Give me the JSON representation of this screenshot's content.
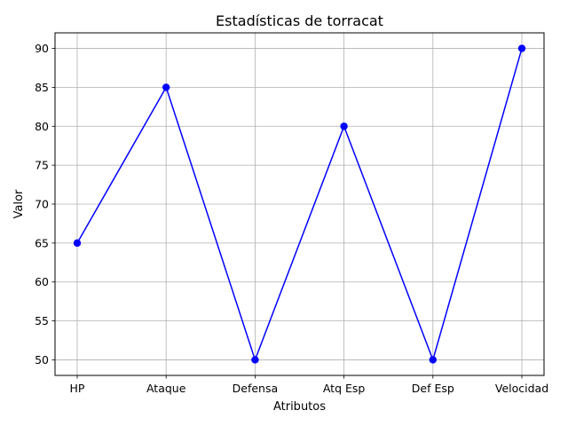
{
  "chart_data": {
    "type": "line",
    "title": "Estadísticas de torracat",
    "xlabel": "Atributos",
    "ylabel": "Valor",
    "categories": [
      "HP",
      "Ataque",
      "Defensa",
      "Atq Esp",
      "Def Esp",
      "Velocidad"
    ],
    "series": [
      {
        "values": [
          65,
          85,
          50,
          80,
          50,
          90
        ],
        "color": "#0000ff",
        "marker": "circle"
      }
    ],
    "ylim": [
      48,
      92
    ],
    "yticks": [
      50,
      55,
      60,
      65,
      70,
      75,
      80,
      85,
      90
    ],
    "grid": true,
    "legend": "none"
  }
}
